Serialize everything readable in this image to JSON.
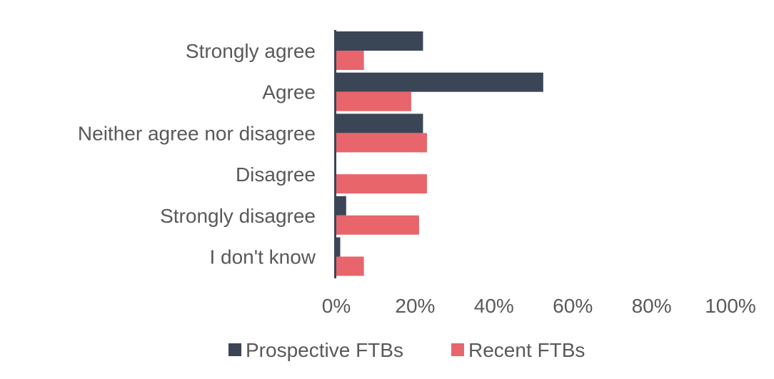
{
  "chart_data": {
    "type": "bar",
    "orientation": "horizontal",
    "categories": [
      "Strongly agree",
      "Agree",
      "Neither agree nor disagree",
      "Disagree",
      "Strongly disagree",
      "I don't know"
    ],
    "series": [
      {
        "name": "Prospective FTBs",
        "color": "#3a4556",
        "values": [
          22,
          52.5,
          22,
          0,
          2.5,
          1
        ]
      },
      {
        "name": "Recent FTBs",
        "color": "#e8656c",
        "values": [
          7,
          19,
          23,
          23,
          21,
          7
        ]
      }
    ],
    "xlim": [
      0,
      100
    ],
    "xticks": [
      "0%",
      "20%",
      "40%",
      "60%",
      "80%",
      "100%"
    ],
    "xtick_values": [
      0,
      20,
      40,
      60,
      80,
      100
    ],
    "grid": false,
    "legend_position": "bottom"
  }
}
